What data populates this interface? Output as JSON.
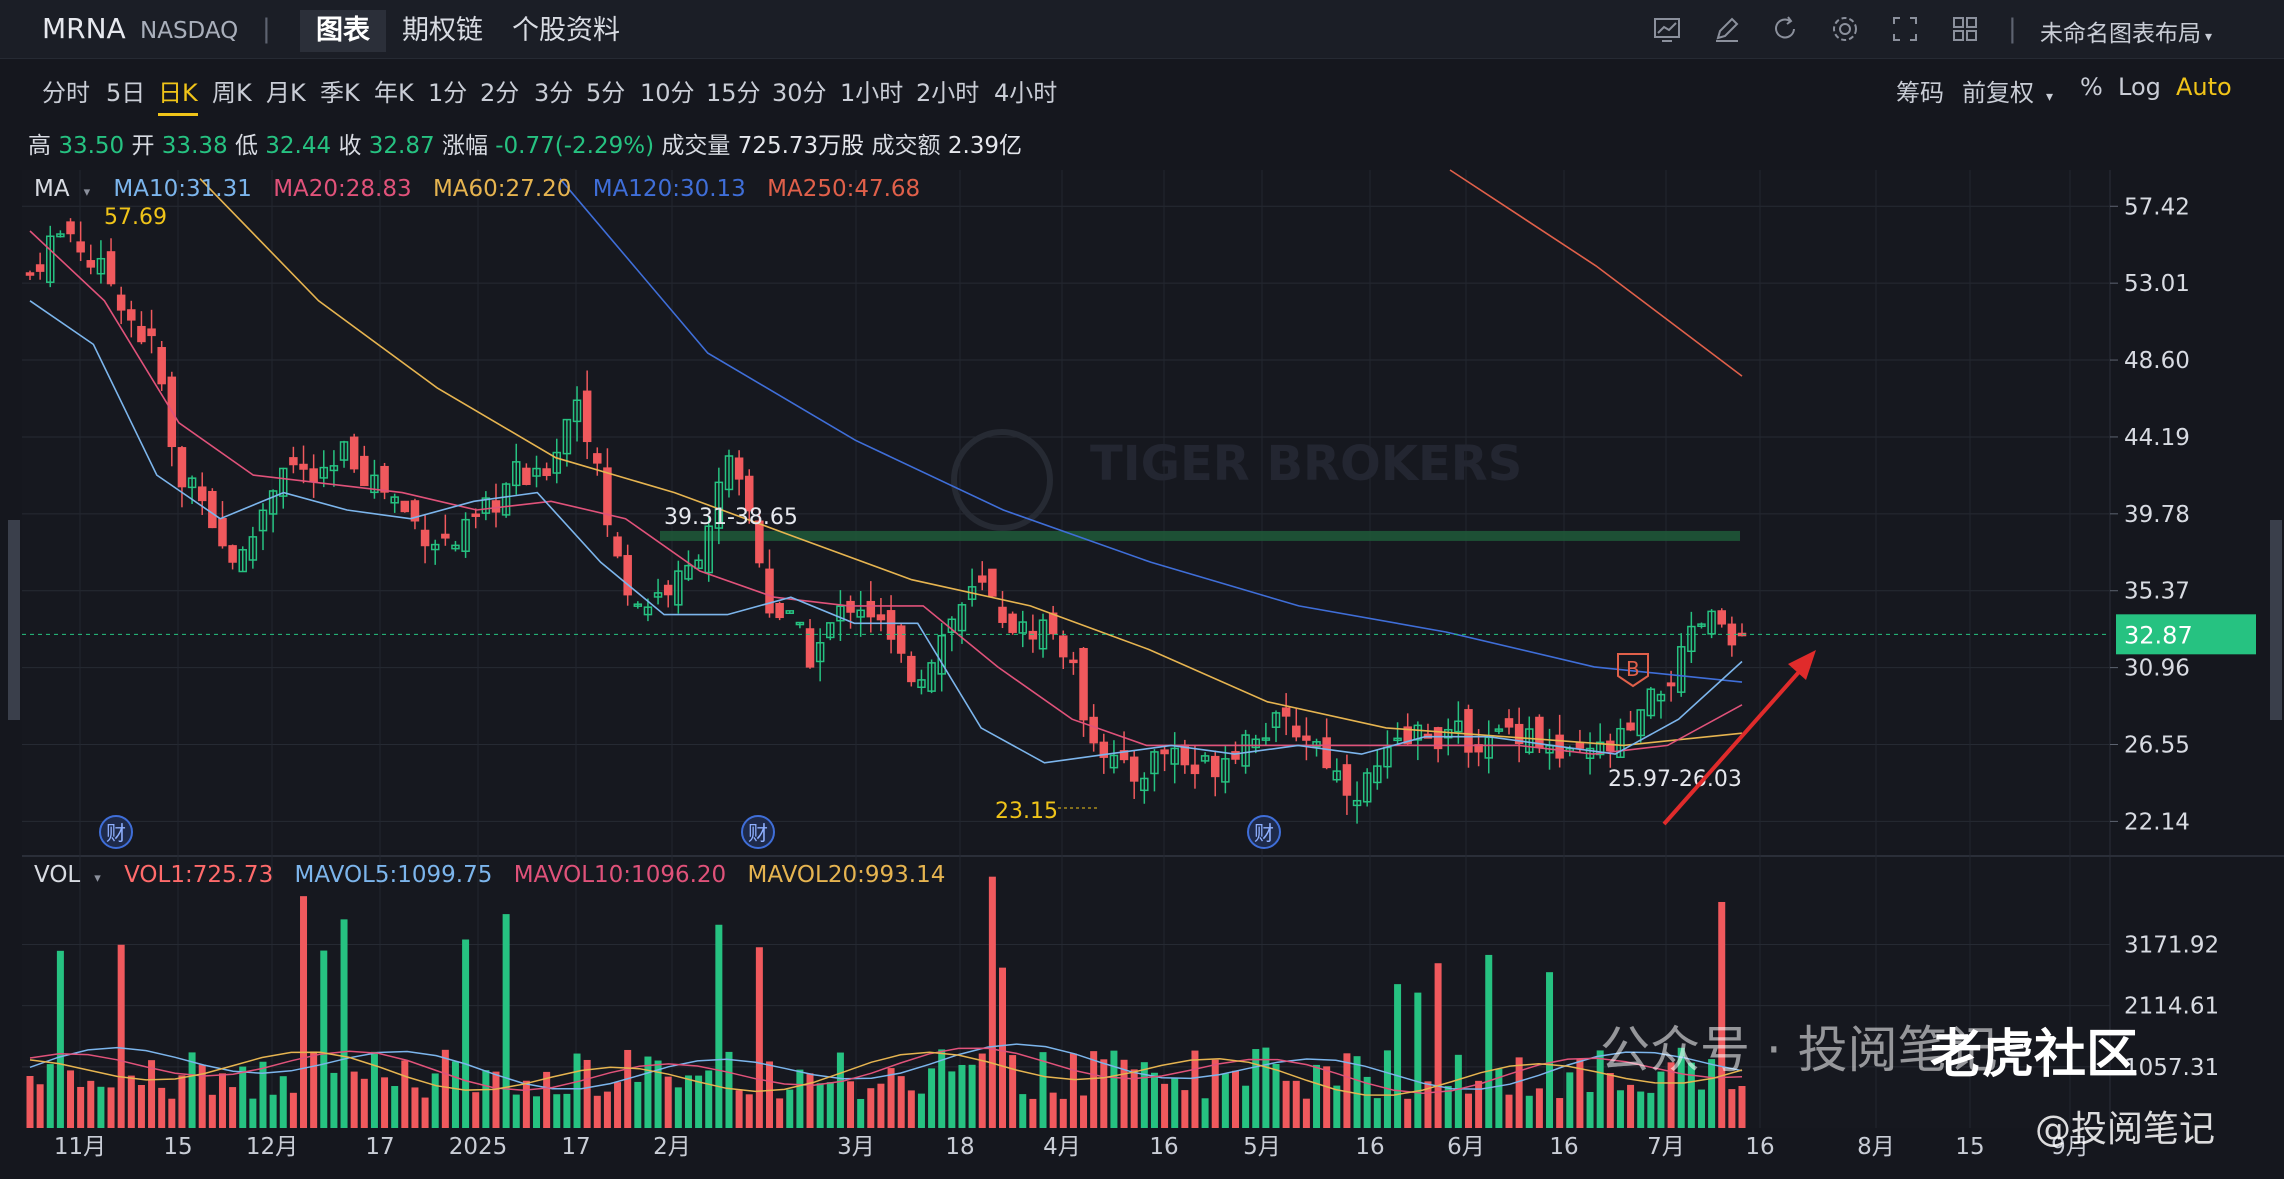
{
  "header": {
    "symbol": "MRNA",
    "exchange": "NASDAQ",
    "separator": "|",
    "tabs": [
      {
        "label": "图表",
        "active": true
      },
      {
        "label": "期权链",
        "active": false
      },
      {
        "label": "个股资料",
        "active": false
      }
    ],
    "icons": [
      "chart-icon",
      "pen-icon",
      "refresh-icon",
      "gear-icon",
      "fullscreen-icon",
      "grid-icon"
    ],
    "layout_label": "未命名图表布局"
  },
  "timeframes": {
    "items": [
      "分时",
      "5日",
      "日K",
      "周K",
      "月K",
      "季K",
      "年K",
      "1分",
      "2分",
      "3分",
      "5分",
      "10分",
      "15分",
      "30分",
      "1小时",
      "2小时",
      "4小时"
    ],
    "active": "日K",
    "right": [
      "筹码",
      "前复权",
      "%",
      "Log",
      "Auto"
    ]
  },
  "quote": {
    "high_label": "高",
    "high": "33.50",
    "open_label": "开",
    "open": "33.38",
    "low_label": "低",
    "low": "32.44",
    "close_label": "收",
    "close": "32.87",
    "change_label": "涨幅",
    "change": "-0.77(-2.29%)",
    "volume_label": "成交量",
    "volume": "725.73万股",
    "amount_label": "成交额",
    "amount": "2.39亿"
  },
  "ma_legend": {
    "name": "MA",
    "items": [
      {
        "text": "MA10:31.31",
        "color": "#7cb5ec"
      },
      {
        "text": "MA20:28.83",
        "color": "#e0527a"
      },
      {
        "text": "MA60:27.20",
        "color": "#e6b450"
      },
      {
        "text": "MA120:30.13",
        "color": "#3f6ed8"
      },
      {
        "text": "MA250:47.68",
        "color": "#e0604a"
      }
    ]
  },
  "vol_legend": {
    "name": "VOL",
    "items": [
      {
        "text": "VOL1:725.73",
        "color": "#ff6b6b"
      },
      {
        "text": "MAVOL5:1099.75",
        "color": "#7cb5ec"
      },
      {
        "text": "MAVOL10:1096.20",
        "color": "#e0527a"
      },
      {
        "text": "MAVOL20:993.14",
        "color": "#e6b450"
      }
    ]
  },
  "price_axis": [
    "57.42",
    "53.01",
    "48.60",
    "44.19",
    "39.78",
    "35.37",
    "30.96",
    "26.55",
    "22.14"
  ],
  "current_price": "32.87",
  "vol_axis": [
    "3171.92",
    "2114.61",
    "1057.31"
  ],
  "x_axis": [
    "11月",
    "15",
    "12月",
    "17",
    "2025",
    "17",
    "2月",
    "3月",
    "18",
    "4月",
    "16",
    "5月",
    "16",
    "6月",
    "16",
    "7月",
    "16",
    "8月",
    "15",
    "9月"
  ],
  "annotations": {
    "high_mark": "57.69",
    "zone_label": "39.31-38.65",
    "low_mark": "23.15",
    "bottom_zone": "25.97-26.03",
    "buy_marker": "B",
    "earnings_marker": "财",
    "watermark_logo": "TIGER BROKERS"
  },
  "footer_watermark": {
    "line1": "公众号 · 投阅笔记",
    "brand": "老虎社区",
    "handle": "@投阅笔记"
  },
  "colors": {
    "up": "#26c281",
    "down": "#f0595d",
    "accent": "#f0c419",
    "price_tag": "#26c281"
  },
  "chart_data": {
    "type": "candlestick",
    "ylim": [
      20.5,
      59.5
    ],
    "x_ticks": [
      "11月",
      "15",
      "12月",
      "17",
      "2025",
      "17",
      "2月",
      "3月",
      "18",
      "4月",
      "16",
      "5月",
      "16",
      "6月",
      "16",
      "7月",
      "16",
      "8月",
      "15",
      "9月"
    ],
    "close_path": [
      53.5,
      55.5,
      56.0,
      54.0,
      53.0,
      50.5,
      49.0,
      41.0,
      42.0,
      38.0,
      37.0,
      40.0,
      43.0,
      42.0,
      41.5,
      43.5,
      42.0,
      41.0,
      39.5,
      38.5,
      38.0,
      39.0,
      40.5,
      42.0,
      41.5,
      44.0,
      47.0,
      41.0,
      36.0,
      34.5,
      35.5,
      36.0,
      39.0,
      42.5,
      40.0,
      34.5,
      33.5,
      31.5,
      33.5,
      35.0,
      34.0,
      31.5,
      30.5,
      32.5,
      34.5,
      35.5,
      34.0,
      33.0,
      33.5,
      32.0,
      28.0,
      26.0,
      24.5,
      25.5,
      26.5,
      25.0,
      25.5,
      26.5,
      27.5,
      27.5,
      27.5,
      26.5,
      24.5,
      24.0,
      25.5,
      26.5,
      27.5,
      27.0,
      27.0,
      26.5,
      27.5,
      27.5,
      26.0,
      25.5,
      26.0,
      26.5,
      27.5,
      29.5,
      31.0,
      33.5,
      33.5,
      32.87
    ],
    "ma10_path": [
      52.0,
      49.5,
      42.0,
      39.5,
      41.0,
      40.0,
      39.5,
      40.5,
      41.0,
      37.0,
      34.0,
      34.0,
      35.0,
      33.5,
      33.5,
      27.5,
      25.5,
      26.0,
      26.5,
      26.0,
      26.5,
      26.0,
      27.0,
      27.0,
      26.5,
      26.0,
      28.0,
      31.31
    ],
    "ma20_path": [
      56.0,
      52.0,
      45.0,
      42.0,
      41.5,
      41.0,
      40.0,
      40.5,
      39.5,
      36.5,
      35.0,
      34.5,
      34.5,
      31.0,
      28.0,
      26.5,
      26.5,
      26.5,
      26.5,
      26.5,
      26.5,
      26.0,
      26.5,
      28.83
    ],
    "ma60_path": [
      59.0,
      52.0,
      47.0,
      43.0,
      41.0,
      38.5,
      36.0,
      34.5,
      32.0,
      29.0,
      27.5,
      27.0,
      26.5,
      27.2
    ],
    "ma120_path": [
      59.0,
      49.0,
      44.0,
      40.0,
      37.0,
      34.5,
      33.0,
      31.0,
      30.13
    ],
    "ma250_path": [
      59.5,
      54.0,
      47.68
    ],
    "volume_series": {
      "ylim": [
        0,
        4200
      ],
      "mavol5_last": 1099.75,
      "mavol10_last": 1096.2,
      "mavol20_last": 993.14,
      "vol_last": 725.73
    }
  }
}
